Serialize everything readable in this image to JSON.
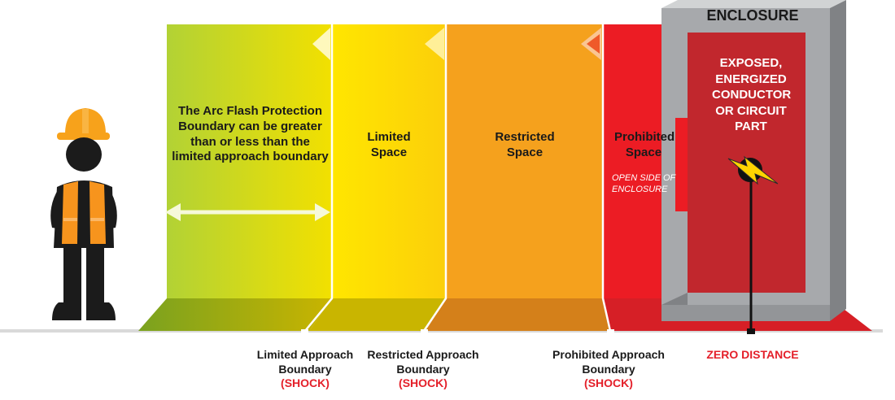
{
  "colors": {
    "green_zone": "#b5d334",
    "yellow_zone": "#ffe000",
    "orange_zone": "#f5a11d",
    "red_zone": "#ec1c24",
    "enclosure_gray": "#a7a9ac",
    "enclosure_inner": "#c1272d",
    "label_red": "#e4202a",
    "vest_orange": "#f7941d",
    "hardhat_orange": "#f7a21b"
  },
  "arc_flash_note": "The Arc Flash Protection Boundary can be greater than or less than the limited approach boundary",
  "zones": {
    "limited": "Limited Space",
    "restricted": "Restricted Space",
    "prohibited": "Prohibited Space",
    "prohibited_note": "OPEN SIDE OF ENCLOSURE"
  },
  "enclosure": {
    "title": "ENCLOSURE",
    "conductor": "EXPOSED, ENERGIZED CONDUCTOR OR CIRCUIT PART"
  },
  "boundaries": [
    {
      "line1": "Limited Approach",
      "line2": "Boundary",
      "shock": "(SHOCK)"
    },
    {
      "line1": "Restricted Approach",
      "line2": "Boundary",
      "shock": "(SHOCK)"
    },
    {
      "line1": "Prohibited Approach",
      "line2": "Boundary",
      "shock": "(SHOCK)"
    }
  ],
  "zero_distance": "ZERO DISTANCE"
}
